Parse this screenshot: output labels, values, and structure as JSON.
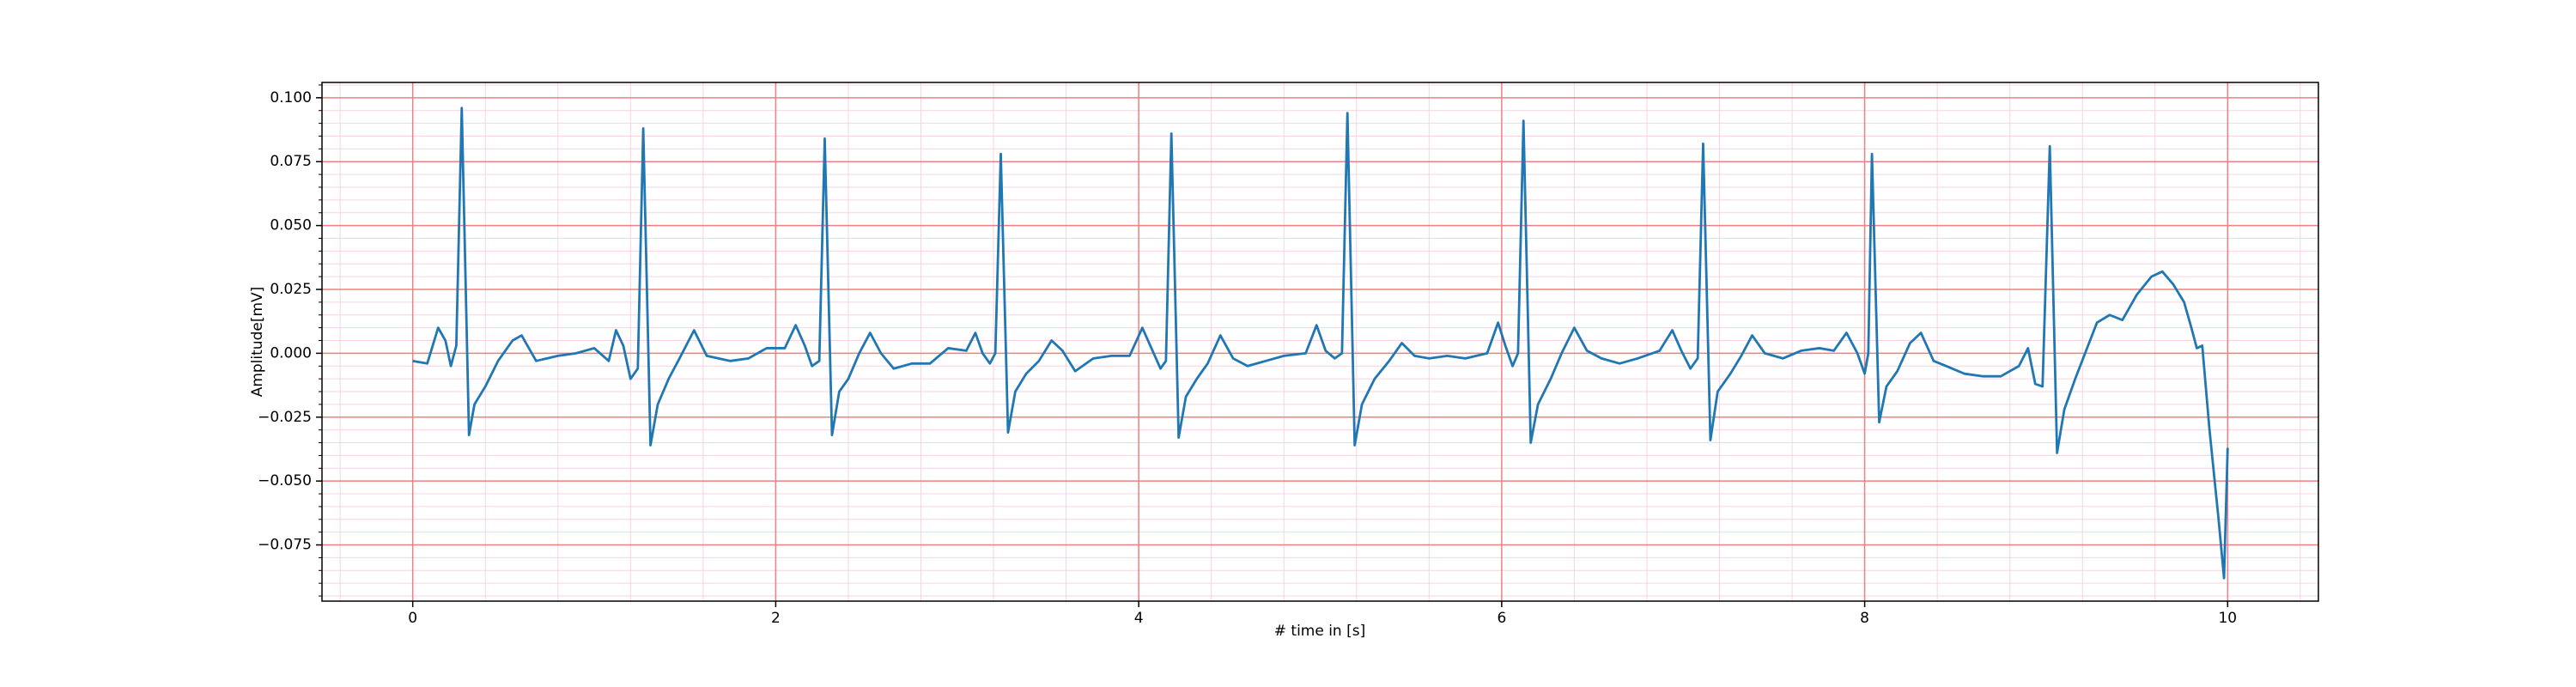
{
  "chart_data": {
    "type": "line",
    "xlabel": "# time in [s]",
    "ylabel": "Amplitude[mV]",
    "color": "#1f77b4",
    "grid": true,
    "grid_color": "#f08080",
    "minor_grid": true,
    "minor_grid_color": "#f7d3e3",
    "xlim": [
      -0.5,
      10.5
    ],
    "ylim": [
      -0.097,
      0.106
    ],
    "xticks": [
      0,
      2,
      4,
      6,
      8,
      10
    ],
    "yticks": [
      {
        "value": -0.075,
        "label": "−0.075"
      },
      {
        "value": -0.05,
        "label": "−0.050"
      },
      {
        "value": -0.025,
        "label": "−0.025"
      },
      {
        "value": 0,
        "label": "0.000"
      },
      {
        "value": 0.025,
        "label": "0.025"
      },
      {
        "value": 0.05,
        "label": "0.050"
      },
      {
        "value": 0.075,
        "label": "0.075"
      },
      {
        "value": 0.1,
        "label": "0.100"
      }
    ],
    "x": [
      0,
      0.08,
      0.14,
      0.18,
      0.21,
      0.24,
      0.27,
      0.31,
      0.34,
      0.4,
      0.47,
      0.55,
      0.6,
      0.68,
      0.8,
      0.9,
      1.0,
      1.08,
      1.12,
      1.16,
      1.2,
      1.24,
      1.27,
      1.31,
      1.35,
      1.41,
      1.47,
      1.55,
      1.62,
      1.75,
      1.85,
      1.95,
      2.05,
      2.11,
      2.16,
      2.2,
      2.24,
      2.27,
      2.31,
      2.35,
      2.4,
      2.46,
      2.52,
      2.58,
      2.65,
      2.75,
      2.85,
      2.95,
      3.05,
      3.1,
      3.14,
      3.18,
      3.21,
      3.24,
      3.28,
      3.32,
      3.38,
      3.45,
      3.52,
      3.58,
      3.65,
      3.75,
      3.85,
      3.95,
      4.02,
      4.07,
      4.12,
      4.15,
      4.18,
      4.22,
      4.26,
      4.32,
      4.38,
      4.45,
      4.52,
      4.6,
      4.7,
      4.8,
      4.92,
      4.98,
      5.03,
      5.08,
      5.12,
      5.15,
      5.19,
      5.23,
      5.3,
      5.38,
      5.45,
      5.52,
      5.6,
      5.7,
      5.8,
      5.92,
      5.98,
      6.02,
      6.06,
      6.09,
      6.12,
      6.16,
      6.2,
      6.27,
      6.33,
      6.4,
      6.47,
      6.55,
      6.65,
      6.75,
      6.87,
      6.94,
      6.99,
      7.04,
      7.08,
      7.11,
      7.15,
      7.19,
      7.26,
      7.32,
      7.38,
      7.45,
      7.55,
      7.65,
      7.75,
      7.83,
      7.9,
      7.96,
      8.0,
      8.02,
      8.04,
      8.08,
      8.12,
      8.18,
      8.25,
      8.31,
      8.38,
      8.45,
      8.55,
      8.65,
      8.75,
      8.85,
      8.9,
      8.94,
      8.98,
      9.02,
      9.06,
      9.1,
      9.16,
      9.22,
      9.28,
      9.35,
      9.42,
      9.5,
      9.58,
      9.64,
      9.7,
      9.76,
      9.8,
      9.83,
      9.86,
      9.9,
      9.95,
      9.98,
      10.0
    ],
    "values": [
      -0.003,
      -0.004,
      0.01,
      0.005,
      -0.005,
      0.003,
      0.096,
      -0.032,
      -0.02,
      -0.013,
      -0.003,
      0.005,
      0.007,
      -0.003,
      -0.001,
      0.0,
      0.002,
      -0.003,
      0.009,
      0.003,
      -0.01,
      -0.006,
      0.088,
      -0.036,
      -0.02,
      -0.01,
      -0.002,
      0.009,
      -0.001,
      -0.003,
      -0.002,
      0.002,
      0.002,
      0.011,
      0.003,
      -0.005,
      -0.003,
      0.084,
      -0.032,
      -0.015,
      -0.01,
      0.0,
      0.008,
      0.0,
      -0.006,
      -0.004,
      -0.004,
      0.002,
      0.001,
      0.008,
      0.0,
      -0.004,
      0.0,
      0.078,
      -0.031,
      -0.015,
      -0.008,
      -0.003,
      0.005,
      0.001,
      -0.007,
      -0.002,
      -0.001,
      -0.001,
      0.01,
      0.002,
      -0.006,
      -0.003,
      0.086,
      -0.033,
      -0.017,
      -0.01,
      -0.004,
      0.007,
      -0.002,
      -0.005,
      -0.003,
      -0.001,
      0.0,
      0.011,
      0.001,
      -0.002,
      0.0,
      0.094,
      -0.036,
      -0.02,
      -0.01,
      -0.003,
      0.004,
      -0.001,
      -0.002,
      -0.001,
      -0.002,
      0.0,
      0.012,
      0.003,
      -0.005,
      0.0,
      0.091,
      -0.035,
      -0.02,
      -0.01,
      0.0,
      0.01,
      0.001,
      -0.002,
      -0.004,
      -0.002,
      0.001,
      0.009,
      0.001,
      -0.006,
      -0.002,
      0.082,
      -0.034,
      -0.015,
      -0.008,
      -0.001,
      0.007,
      0.0,
      -0.002,
      0.001,
      0.002,
      0.001,
      0.008,
      0.0,
      -0.008,
      0.0,
      0.078,
      -0.027,
      -0.013,
      -0.007,
      0.004,
      0.008,
      -0.003,
      -0.005,
      -0.008,
      -0.009,
      -0.009,
      -0.005,
      0.002,
      -0.012,
      -0.013,
      0.081,
      -0.039,
      -0.022,
      -0.01,
      0.001,
      0.012,
      0.015,
      0.013,
      0.023,
      0.03,
      0.032,
      0.027,
      0.02,
      0.01,
      0.002,
      0.003,
      -0.03,
      -0.065,
      -0.088,
      -0.037
    ]
  }
}
